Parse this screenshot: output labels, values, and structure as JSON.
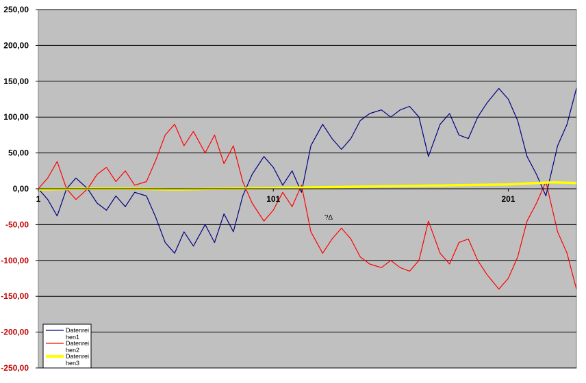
{
  "chart_data": {
    "type": "line",
    "x_range": [
      1,
      230
    ],
    "ylim": [
      -250,
      250
    ],
    "yticks": [
      250,
      200,
      150,
      100,
      50,
      0,
      -50,
      -100,
      -150,
      -200,
      -250
    ],
    "ytick_labels": [
      "250,00",
      "200,00",
      "150,00",
      "100,00",
      "50,00",
      "0,00",
      "-50,00",
      "-100,00",
      "-150,00",
      "-200,00",
      "-250,00"
    ],
    "xticks": [
      1,
      101,
      201
    ],
    "xtick_labels": [
      "1",
      "101",
      "201"
    ],
    "xlabel": "?Δ",
    "grid": "horizontal",
    "plot_background": "#c0c0c0",
    "legend_position": "bottom-left",
    "series": [
      {
        "name": "Datenreihen1",
        "legend_label": [
          "Datenrei",
          "hen1"
        ],
        "color": "#000080",
        "x": [
          1,
          5,
          9,
          13,
          17,
          22,
          26,
          30,
          34,
          38,
          42,
          47,
          51,
          55,
          59,
          63,
          67,
          72,
          76,
          80,
          84,
          88,
          92,
          97,
          101,
          105,
          109,
          113,
          117,
          122,
          126,
          130,
          134,
          138,
          142,
          147,
          151,
          155,
          159,
          163,
          167,
          172,
          176,
          180,
          184,
          188,
          192,
          197,
          201,
          205,
          209,
          213,
          217,
          222,
          226,
          230
        ],
        "values": [
          0,
          -15,
          -38,
          0,
          15,
          0,
          -20,
          -30,
          -10,
          -25,
          -5,
          -10,
          -40,
          -75,
          -90,
          -60,
          -80,
          -50,
          -75,
          -35,
          -60,
          -10,
          20,
          45,
          30,
          5,
          25,
          -5,
          60,
          90,
          70,
          55,
          70,
          95,
          105,
          110,
          100,
          110,
          115,
          100,
          45,
          90,
          105,
          75,
          70,
          100,
          120,
          140,
          125,
          95,
          45,
          20,
          -10,
          60,
          90,
          140
        ]
      },
      {
        "name": "Datenreihen2",
        "legend_label": [
          "Datenrei",
          "hen2"
        ],
        "color": "#ff0000",
        "x": [
          1,
          5,
          9,
          13,
          17,
          22,
          26,
          30,
          34,
          38,
          42,
          47,
          51,
          55,
          59,
          63,
          67,
          72,
          76,
          80,
          84,
          88,
          92,
          97,
          101,
          105,
          109,
          113,
          117,
          122,
          126,
          130,
          134,
          138,
          142,
          147,
          151,
          155,
          159,
          163,
          167,
          172,
          176,
          180,
          184,
          188,
          192,
          197,
          201,
          205,
          209,
          213,
          217,
          222,
          226,
          230
        ],
        "values": [
          0,
          15,
          38,
          0,
          -15,
          0,
          20,
          30,
          10,
          25,
          5,
          10,
          40,
          75,
          90,
          60,
          80,
          50,
          75,
          35,
          60,
          10,
          -20,
          -45,
          -30,
          -5,
          -25,
          5,
          -60,
          -90,
          -70,
          -55,
          -70,
          -95,
          -105,
          -110,
          -100,
          -110,
          -115,
          -100,
          -45,
          -90,
          -105,
          -75,
          -70,
          -100,
          -120,
          -140,
          -125,
          -95,
          -45,
          -20,
          10,
          -60,
          -90,
          -140
        ]
      },
      {
        "name": "Datenreihen3",
        "legend_label": [
          "Datenrei",
          "hen3"
        ],
        "color": "#ffff00",
        "x": [
          1,
          20,
          40,
          60,
          80,
          100,
          120,
          140,
          160,
          180,
          200,
          220,
          230
        ],
        "values": [
          -1,
          0,
          0,
          -1,
          0,
          1,
          2,
          3,
          4,
          5,
          6,
          9,
          8
        ]
      }
    ]
  }
}
